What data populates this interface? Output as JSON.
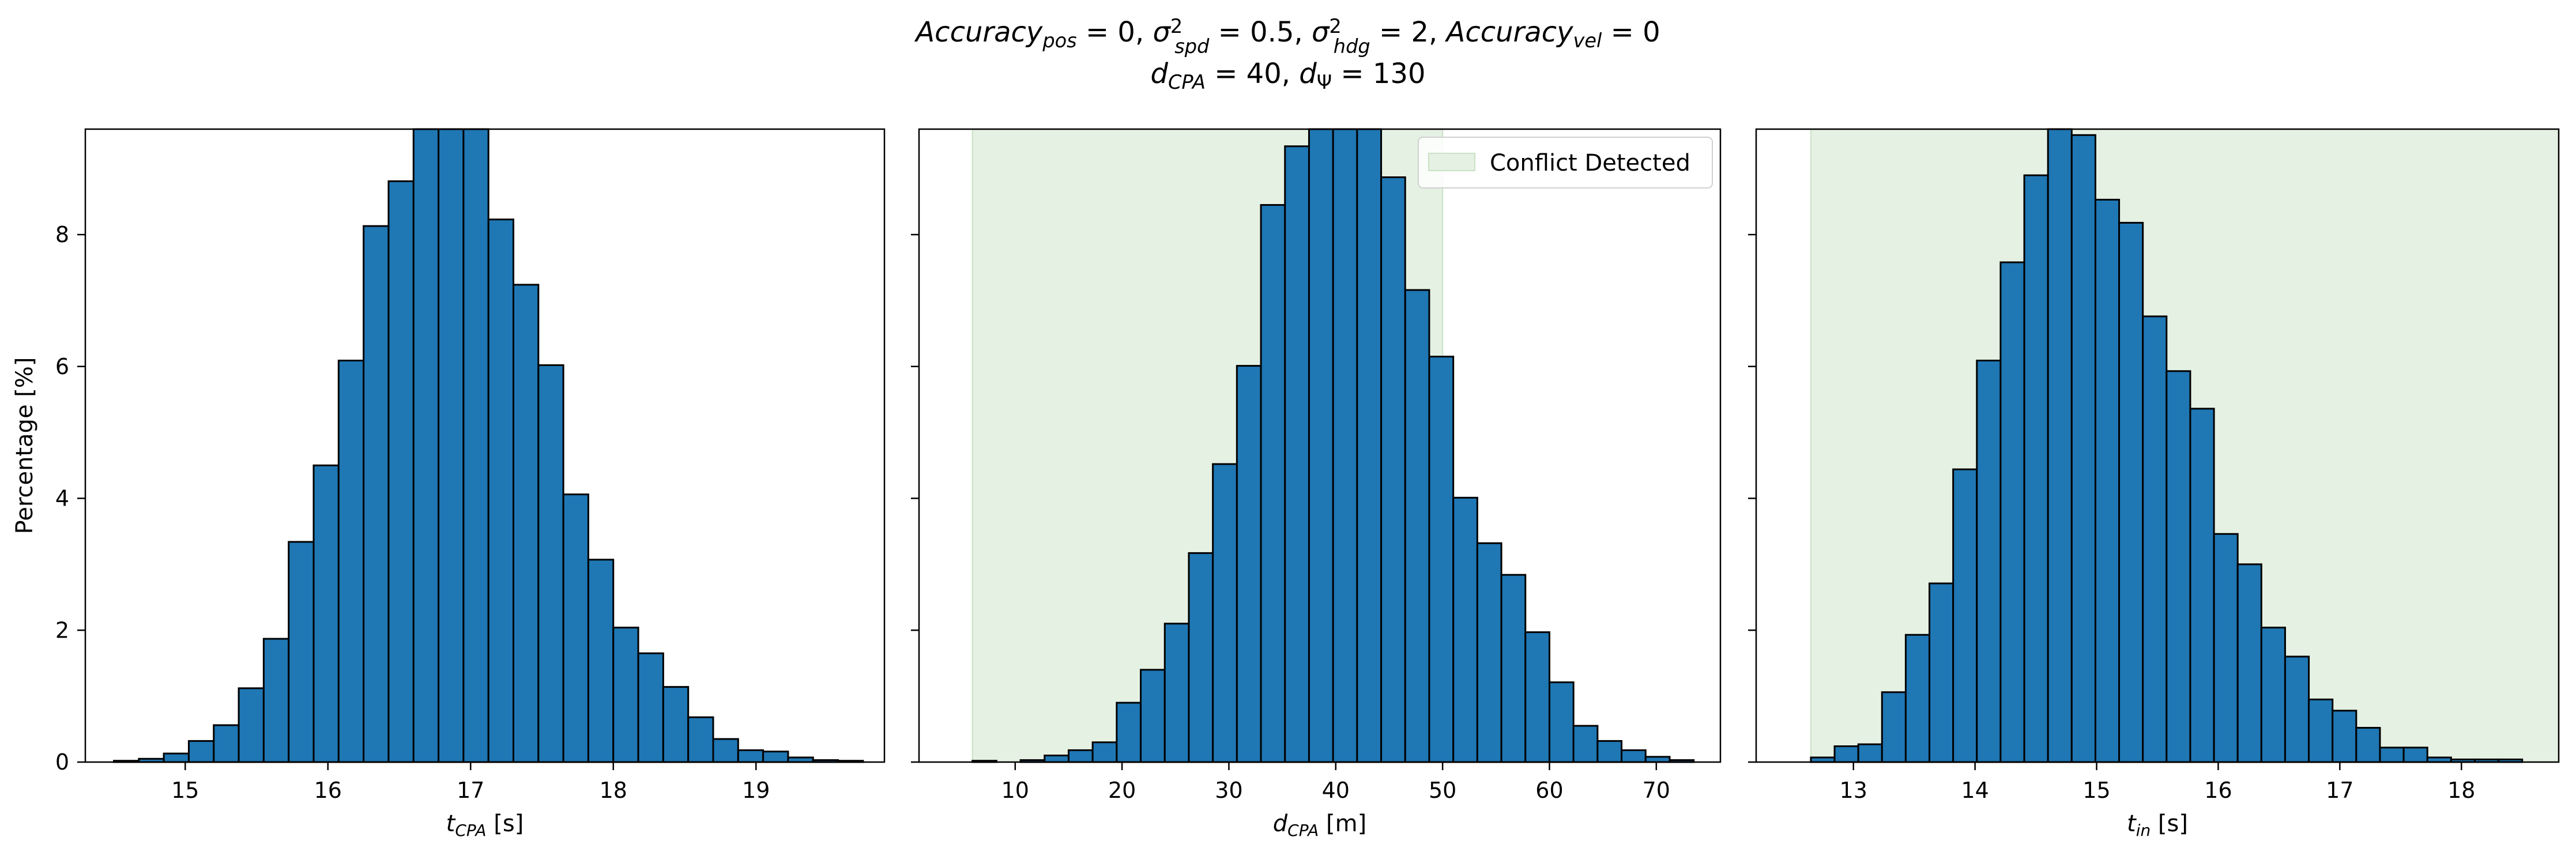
{
  "figure": {
    "title_line1": "Accuracy_pos = 0, σ²_spd = 0.5, σ²_hdg = 2, Accuracy_vel = 0",
    "title_line2": "d_CPA = 40, d_Ψ = 130"
  },
  "colors": {
    "bar_fill": "#1f77b4",
    "bar_edge": "#000000",
    "conflict_fill": "#e5f1e3",
    "conflict_edge": "#c9e2c5"
  },
  "chart_data": [
    {
      "type": "bar",
      "kind": "histogram",
      "xlabel": "t_CPA [s]",
      "ylabel": "Percentage [%]",
      "xlim": [
        14.3,
        19.9
      ],
      "ylim": [
        0,
        9.6
      ],
      "xticks": [
        15,
        16,
        17,
        18,
        19
      ],
      "yticks": [
        0,
        2,
        4,
        6,
        8
      ],
      "bin_edges": [
        14.5,
        14.675,
        14.85,
        15.025,
        15.2,
        15.375,
        15.55,
        15.725,
        15.9,
        16.075,
        16.25,
        16.425,
        16.6,
        16.775,
        16.95,
        17.125,
        17.3,
        17.475,
        17.65,
        17.825,
        18.0,
        18.175,
        18.35,
        18.525,
        18.7,
        18.875,
        19.05,
        19.225,
        19.4,
        19.575,
        19.75
      ],
      "values": [
        0.02,
        0.05,
        0.13,
        0.32,
        0.56,
        1.12,
        1.87,
        3.34,
        4.5,
        6.09,
        8.13,
        8.81,
        9.6,
        9.6,
        9.6,
        8.23,
        7.24,
        6.02,
        4.06,
        3.07,
        2.04,
        1.65,
        1.14,
        0.68,
        0.35,
        0.18,
        0.16,
        0.07,
        0.03,
        0.02
      ],
      "shaded_region": null,
      "legend": null
    },
    {
      "type": "bar",
      "kind": "histogram",
      "xlabel": "d_CPA [m]",
      "ylabel": "",
      "xlim": [
        1,
        76
      ],
      "ylim": [
        0,
        9.6
      ],
      "xticks": [
        10,
        20,
        30,
        40,
        50,
        60,
        70
      ],
      "yticks": [
        0,
        2,
        4,
        6,
        8
      ],
      "bin_edges": [
        6,
        8.25,
        10.5,
        12.75,
        15,
        17.25,
        19.5,
        21.75,
        24,
        26.25,
        28.5,
        30.75,
        33,
        35.25,
        37.5,
        39.75,
        42,
        44.25,
        46.5,
        48.75,
        51,
        53.25,
        55.5,
        57.75,
        60,
        62.25,
        64.5,
        66.75,
        69,
        71.25,
        73.5
      ],
      "values": [
        0.02,
        0.0,
        0.03,
        0.1,
        0.18,
        0.3,
        0.9,
        1.4,
        2.1,
        3.17,
        4.52,
        6.01,
        8.45,
        9.34,
        9.6,
        9.6,
        9.6,
        8.87,
        7.16,
        6.15,
        4.01,
        3.32,
        2.84,
        1.97,
        1.21,
        0.55,
        0.32,
        0.18,
        0.08,
        0.03
      ],
      "shaded_region": [
        6,
        50
      ],
      "legend": {
        "entries": [
          "Conflict Detected"
        ],
        "placement": "upper right"
      }
    },
    {
      "type": "bar",
      "kind": "histogram",
      "xlabel": "t_in [s]",
      "ylabel": "",
      "xlim": [
        12.2,
        18.8
      ],
      "ylim": [
        0,
        9.6
      ],
      "xticks": [
        13,
        14,
        15,
        16,
        17,
        18
      ],
      "yticks": [
        0,
        2,
        4,
        6,
        8
      ],
      "bin_edges": [
        12.65,
        12.845,
        13.04,
        13.235,
        13.43,
        13.625,
        13.82,
        14.015,
        14.21,
        14.405,
        14.6,
        14.795,
        14.99,
        15.185,
        15.38,
        15.575,
        15.77,
        15.965,
        16.16,
        16.355,
        16.55,
        16.745,
        16.94,
        17.135,
        17.33,
        17.525,
        17.72,
        17.915,
        18.11,
        18.305,
        18.5
      ],
      "values": [
        0.07,
        0.24,
        0.27,
        1.06,
        1.93,
        2.71,
        4.44,
        6.09,
        7.58,
        8.9,
        9.6,
        9.51,
        8.53,
        8.18,
        6.76,
        5.93,
        5.36,
        3.46,
        3.0,
        2.04,
        1.6,
        0.95,
        0.78,
        0.52,
        0.22,
        0.22,
        0.07,
        0.04,
        0.04,
        0.04
      ],
      "shaded_region": [
        12.65,
        18.8
      ],
      "legend": null
    }
  ]
}
